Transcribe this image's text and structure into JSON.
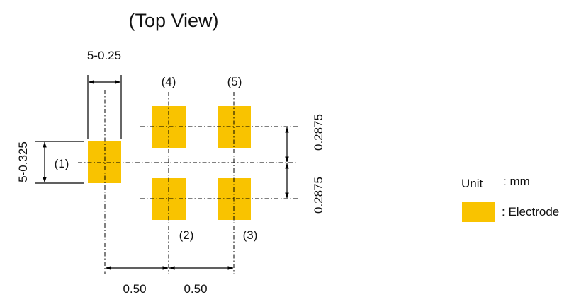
{
  "title": "(Top View)",
  "dimensions": {
    "pad_width": "5-0.25",
    "pad_height": "5-0.325",
    "pitch_y_upper": "0.2875",
    "pitch_y_lower": "0.2875",
    "pitch_x_left": "0.50",
    "pitch_x_right": "0.50"
  },
  "pins": {
    "p1": "(1)",
    "p2": "(2)",
    "p3": "(3)",
    "p4": "(4)",
    "p5": "(5)"
  },
  "legend": {
    "unit_label": "Unit",
    "unit_value": ": mm",
    "electrode_label": ": Electrode"
  },
  "colors": {
    "electrode": "#F9C300"
  }
}
